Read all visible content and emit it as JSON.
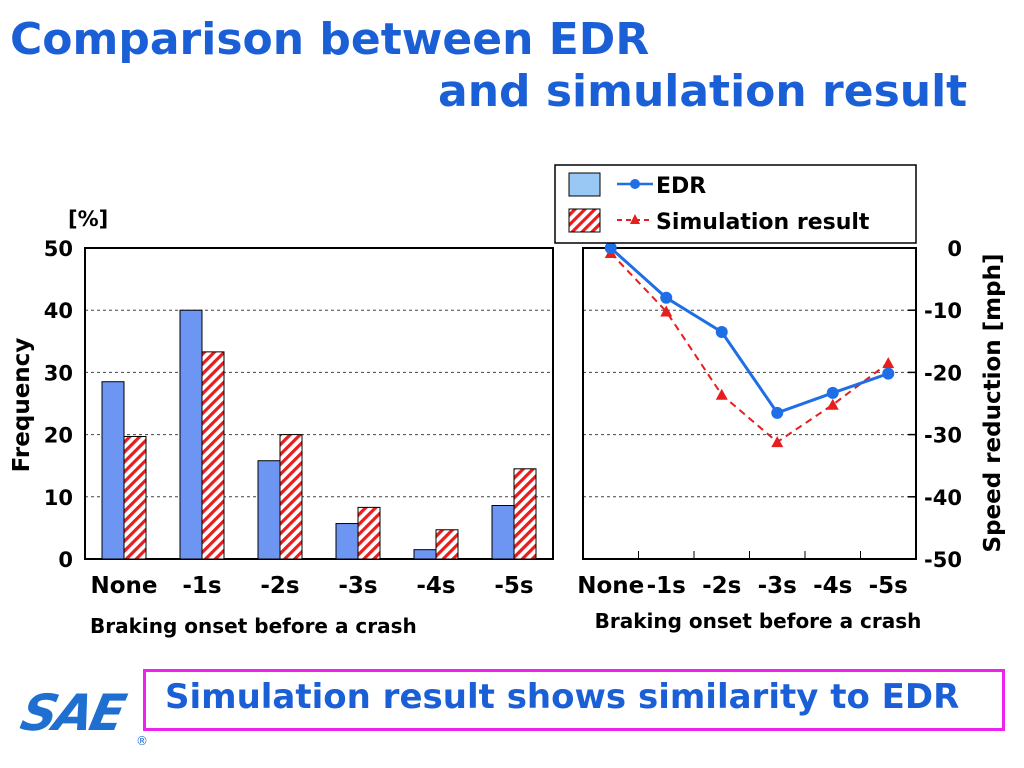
{
  "title": {
    "line1": "Comparison between EDR",
    "line2": "and simulation result"
  },
  "legend": {
    "edr": "EDR",
    "sim": "Simulation result"
  },
  "conclusion": "Simulation result shows similarity to EDR",
  "logo": {
    "text": "SAE",
    "registered": "®"
  },
  "colors": {
    "title": "#1a5fd6",
    "edr_bar": "#6d96f2",
    "edr_line": "#1e6ee6",
    "sim": "#e51e1e",
    "callout_border": "#ee22ee"
  },
  "chart_data": [
    {
      "type": "bar",
      "unit_label": "[%]",
      "ylabel": "Frequency",
      "xlabel": "Braking onset before a crash",
      "categories": [
        "None",
        "-1s",
        "-2s",
        "-3s",
        "-4s",
        "-5s"
      ],
      "ylim": [
        0,
        50
      ],
      "yticks": [
        0,
        10,
        20,
        30,
        40,
        50
      ],
      "grid": true,
      "series": [
        {
          "name": "EDR",
          "values": [
            28.5,
            40,
            15.8,
            5.7,
            1.5,
            8.6
          ]
        },
        {
          "name": "Simulation result",
          "values": [
            19.7,
            33.3,
            20,
            8.3,
            4.7,
            14.5
          ]
        }
      ]
    },
    {
      "type": "line",
      "ylabel": "Speed reduction [mph]",
      "xlabel": "Braking onset before a crash",
      "categories": [
        "None",
        "-1s",
        "-2s",
        "-3s",
        "-4s",
        "-5s"
      ],
      "ylim": [
        -50,
        0
      ],
      "yticks": [
        0,
        -10,
        -20,
        -30,
        -40,
        -50
      ],
      "grid": true,
      "series": [
        {
          "name": "EDR",
          "values": [
            0,
            -8,
            -13.5,
            -26.5,
            -23.3,
            -20.2
          ]
        },
        {
          "name": "Simulation result",
          "values": [
            -0.8,
            -10.2,
            -23.6,
            -31.2,
            -25.2,
            -18.5
          ]
        }
      ]
    }
  ]
}
